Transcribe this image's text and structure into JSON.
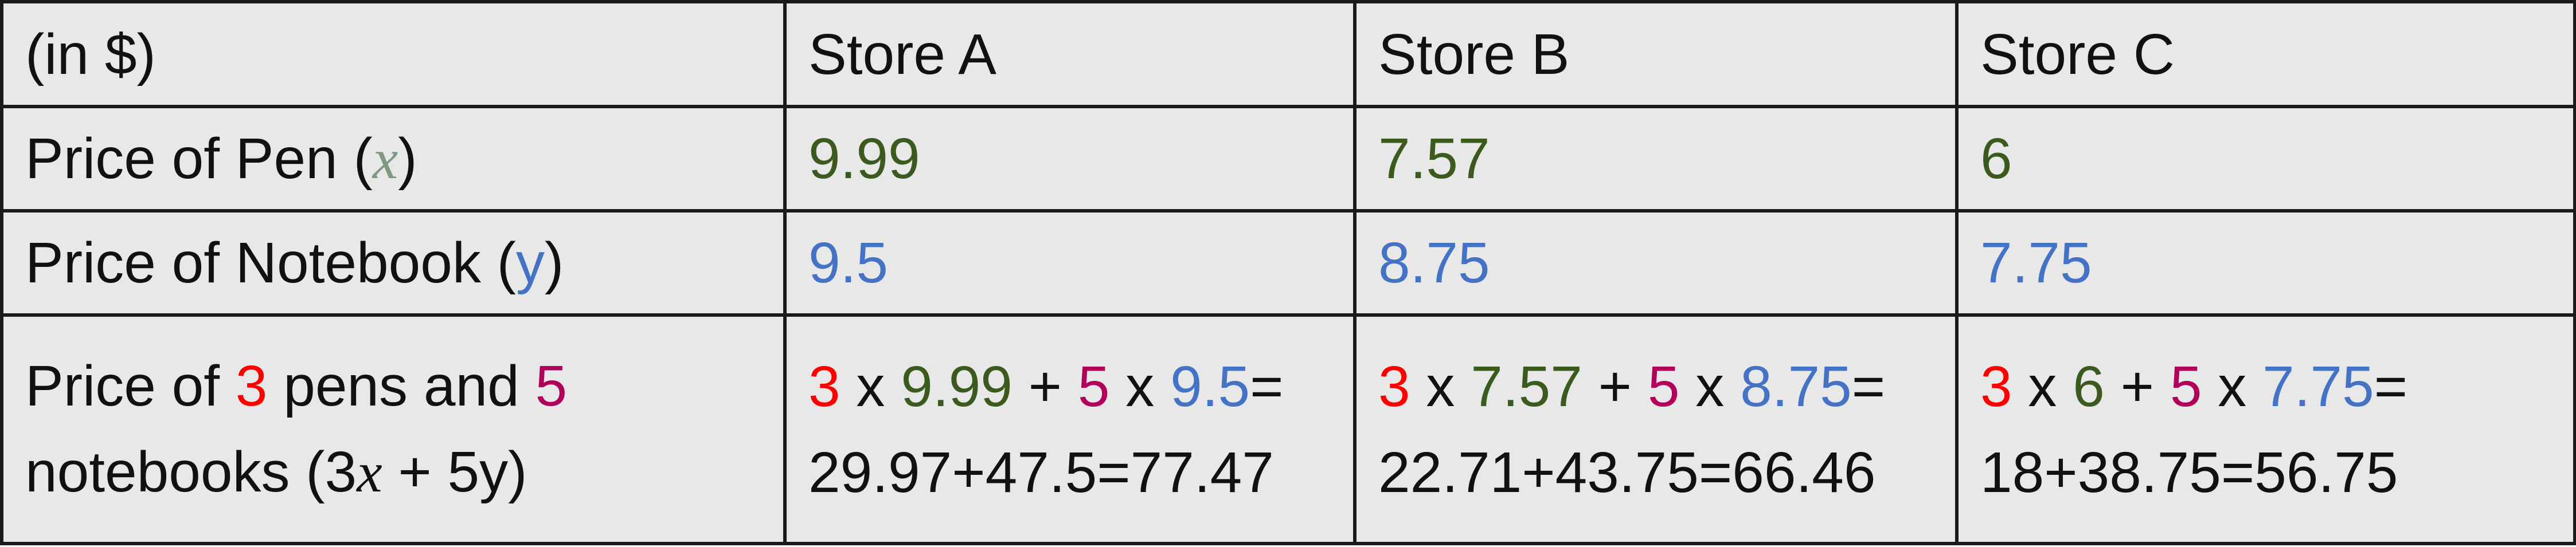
{
  "table": {
    "header": {
      "unit_label": "(in $)",
      "stores": [
        "Store A",
        "Store B",
        "Store C"
      ]
    },
    "pen_row": {
      "label_prefix": "Price of Pen (",
      "var": "x",
      "label_suffix": ")",
      "values": [
        "9.99",
        "7.57",
        "6"
      ]
    },
    "notebook_row": {
      "label_prefix": "Price of Notebook (",
      "var": "y",
      "label_suffix": ")",
      "values": [
        "9.5",
        "8.75",
        "7.75"
      ]
    },
    "total_row": {
      "line1_prefix": "Price of ",
      "pen_count": "3",
      "line1_mid": " pens and ",
      "notebook_count": "5",
      "line2_prefix": "notebooks (3",
      "line2_var": "x",
      "line2_suffix": " + 5y)",
      "times": "x",
      "plus": "+",
      "equals": "=",
      "results": [
        "29.97+47.5=77.47",
        "22.71+43.75=66.46",
        "18+38.75=56.75"
      ]
    }
  },
  "colors": {
    "pen_value": "#3a5a1e",
    "notebook_value": "#4472c4",
    "pen_count": "#ff0000",
    "notebook_count": "#b0005a",
    "background": "#e8e8e8",
    "border": "#1a1a1a"
  }
}
